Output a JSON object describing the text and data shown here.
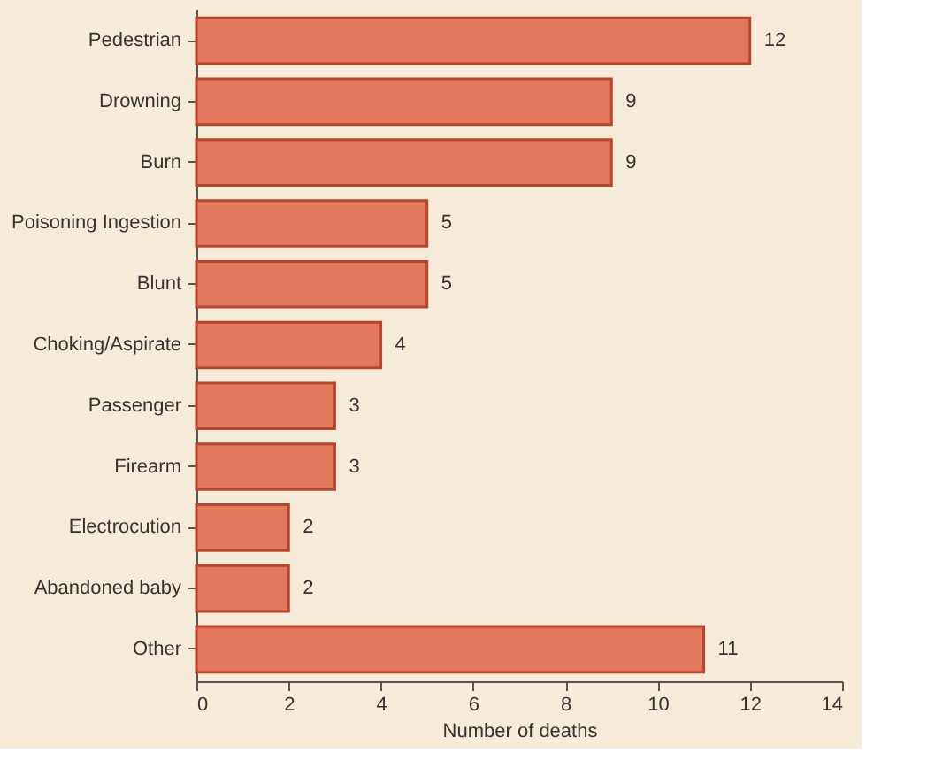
{
  "chart_data": {
    "type": "bar",
    "orientation": "horizontal",
    "xlabel": "Number of deaths",
    "categories": [
      "Pedestrian",
      "Drowning",
      "Burn",
      "Poisoning Ingestion",
      "Blunt",
      "Choking/Aspirate",
      "Passenger",
      "Firearm",
      "Electrocution",
      "Abandoned baby",
      "Other"
    ],
    "values": [
      12,
      9,
      9,
      5,
      5,
      4,
      3,
      3,
      2,
      2,
      11
    ],
    "color": "#e2795d",
    "xlim": [
      0,
      14
    ],
    "xticks": [
      0,
      2,
      4,
      6,
      8,
      10,
      12,
      14
    ],
    "data_labels": true,
    "grid": false
  }
}
